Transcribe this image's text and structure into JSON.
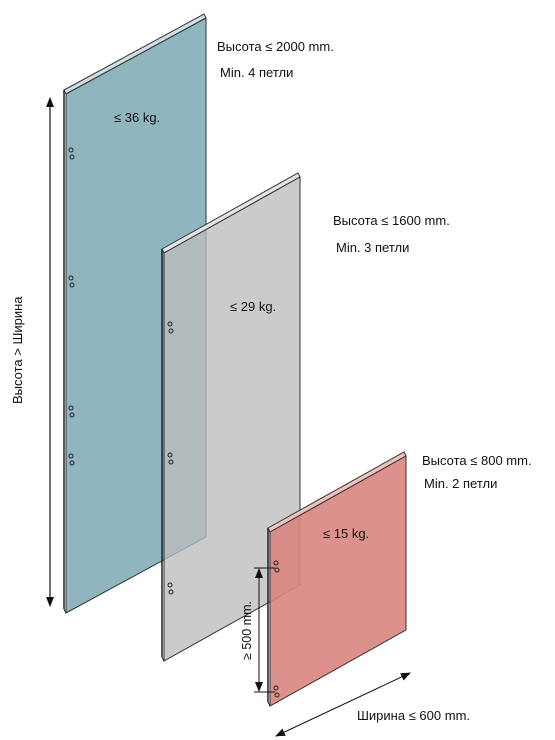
{
  "panels": {
    "large": {
      "height_label": "Высота ≤ 2000 mm.",
      "hinges_label": "Min. 4 петли",
      "weight_label": "≤ 36 kg.",
      "color": "#8fb5bf"
    },
    "medium": {
      "height_label": "Высота ≤ 1600 mm.",
      "hinges_label": "Min. 3 петли",
      "weight_label": "≤ 29 kg.",
      "color": "#bcbcbe"
    },
    "small": {
      "height_label": "Высота ≤ 800 mm.",
      "hinges_label": "Min. 2 петли",
      "weight_label": "≤ 15 kg.",
      "color": "#d98580"
    }
  },
  "dimensions": {
    "vertical_rule": "Высота  > Ширина",
    "hinge_spacing": "≥ 500 mm.",
    "width_limit": "Ширина ≤ 600 mm."
  }
}
